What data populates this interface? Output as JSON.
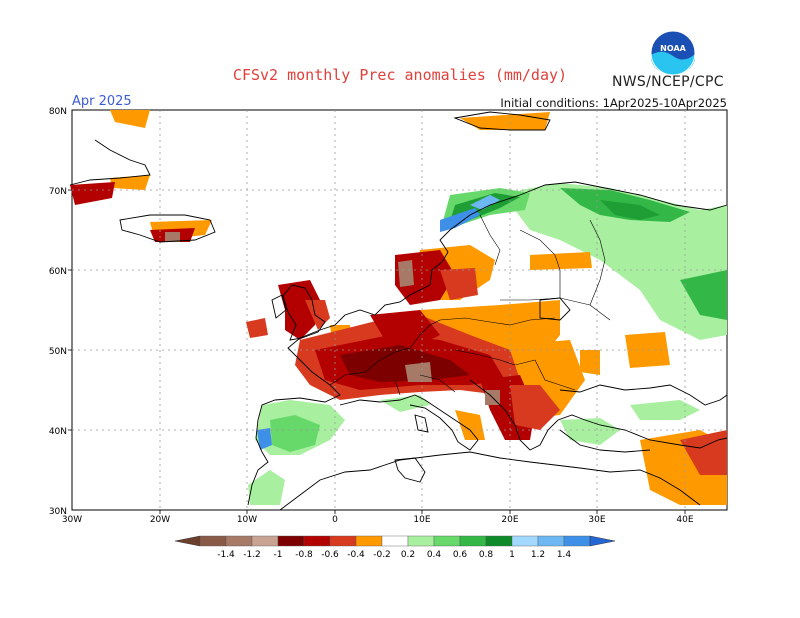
{
  "title": "CFSv2 monthly Prec anomalies (mm/day)",
  "agency": "NWS/NCEP/CPC",
  "logo_text": "NOAA",
  "month": "Apr 2025",
  "initial_conditions": "Initial conditions: 1Apr2025-10Apr2025",
  "axes": {
    "lat_labels": [
      "80N",
      "70N",
      "60N",
      "50N",
      "40N",
      "30N"
    ],
    "lon_labels": [
      "30W",
      "20W",
      "10W",
      "0",
      "10E",
      "20E",
      "30E",
      "40E"
    ]
  },
  "legend": {
    "labels": [
      "-1.4",
      "-1.2",
      "-1",
      "-0.8",
      "-0.6",
      "-0.4",
      "-0.2",
      "0.2",
      "0.4",
      "0.6",
      "0.8",
      "1",
      "1.2",
      "1.4"
    ],
    "colors": [
      "#7a4f3d",
      "#a67a66",
      "#c8a392",
      "#7d0000",
      "#b30000",
      "#d73a1e",
      "#ff6a00",
      "#ffa500",
      "#ffffff",
      "#a8f0a0",
      "#66d96a",
      "#33b847",
      "#1f9e35",
      "#0f8a28",
      "#a3d8ff",
      "#6db8f2",
      "#3d8fe8",
      "#2466d4"
    ]
  },
  "colors": {
    "negative_strong": "#b30000",
    "negative": "#d73a1e",
    "negative_weak": "#ff9900",
    "positive_weak": "#a8f0a0",
    "positive": "#33b847",
    "positive_strong": "#0f8a28",
    "blue": "#3d8fe8",
    "brown": "#a67a66"
  }
}
